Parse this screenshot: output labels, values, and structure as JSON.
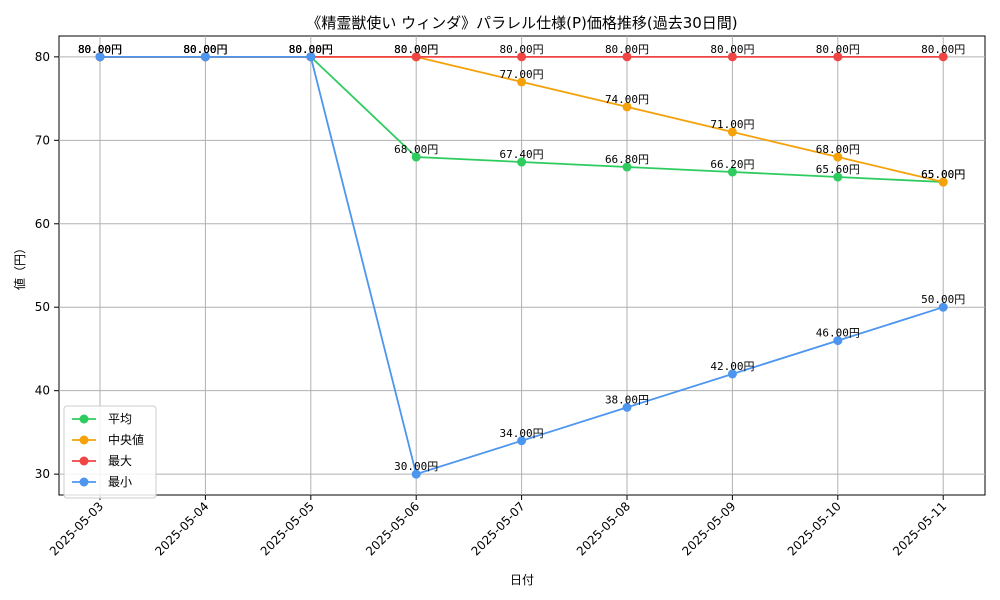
{
  "chart_data": {
    "type": "line",
    "title": "《精霊獣使い ウィンダ》パラレル仕様(P)価格推移(過去30日間)",
    "xlabel": "日付",
    "ylabel": "値（円）",
    "ylim": [
      27.5,
      82.5
    ],
    "yticks": [
      30,
      40,
      50,
      60,
      70,
      80
    ],
    "grid": true,
    "legend_position": "lower-left",
    "value_suffix": "円",
    "categories": [
      "2025-05-03",
      "2025-05-04",
      "2025-05-05",
      "2025-05-06",
      "2025-05-07",
      "2025-05-08",
      "2025-05-09",
      "2025-05-10",
      "2025-05-11"
    ],
    "series": [
      {
        "name": "平均",
        "color": "#2ecc5f",
        "values": [
          80,
          80,
          80,
          68,
          67.4,
          66.8,
          66.2,
          65.6,
          65
        ]
      },
      {
        "name": "中央値",
        "color": "#f5a20a",
        "values": [
          80,
          80,
          80,
          80,
          77,
          74,
          71,
          68,
          65
        ]
      },
      {
        "name": "最大",
        "color": "#f04545",
        "values": [
          80,
          80,
          80,
          80,
          80,
          80,
          80,
          80,
          80
        ]
      },
      {
        "name": "最小",
        "color": "#4d96f0",
        "values": [
          80,
          80,
          80,
          30,
          34,
          38,
          42,
          46,
          50
        ]
      }
    ]
  }
}
